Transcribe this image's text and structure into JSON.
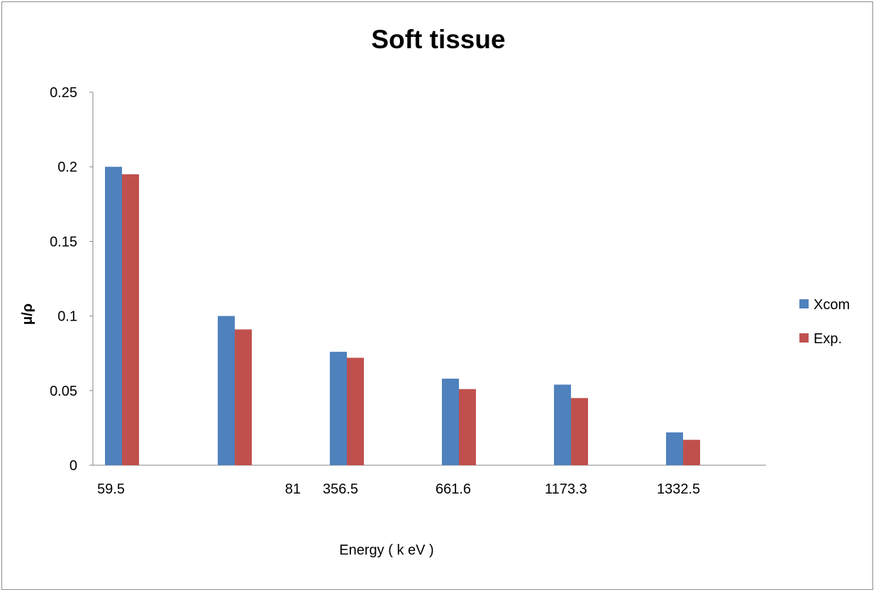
{
  "chart_data": {
    "type": "bar",
    "title": "Soft tissue",
    "xlabel": "Energy ( k eV )",
    "ylabel": "μ/ρ",
    "categories": [
      "59.5",
      "81",
      "356.5",
      "661.6",
      "1173.3",
      "1332.5"
    ],
    "ylim": [
      0,
      0.25
    ],
    "yticks": [
      "0",
      "0.05",
      "0.1",
      "0.15",
      "0.2",
      "0.25"
    ],
    "grid": false,
    "legend_position": "right",
    "series": [
      {
        "name": "Xcom",
        "color": "#4f81bd",
        "values": [
          0.2,
          0.1,
          0.076,
          0.058,
          0.054,
          0.022
        ]
      },
      {
        "name": "Exp.",
        "color": "#c0504d",
        "values": [
          0.195,
          0.091,
          0.072,
          0.051,
          0.045,
          0.017
        ]
      }
    ]
  }
}
